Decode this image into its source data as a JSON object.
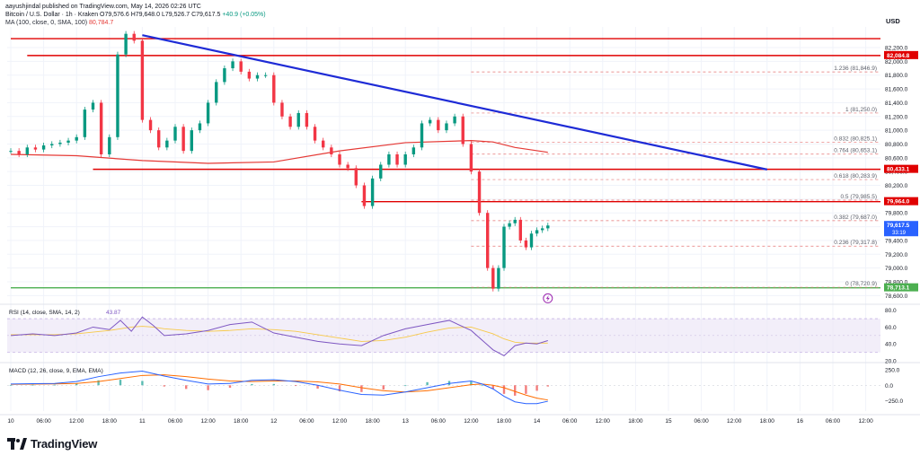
{
  "header": {
    "author": "aayushjindal published on TradingView.com, May 14, 2026 02:26 UTC",
    "symbol": "Bitcoin / U.S. Dollar · 1h · Kraken",
    "open": "O79,576.6",
    "high": "H79,648.0",
    "low": "L79,526.7",
    "close": "C79,617.5",
    "change": "+40.9 (+0.05%)",
    "ma_label": "MA (100, close, 0, SMA, 100)",
    "ma_value": "80,784.7"
  },
  "brand": {
    "name": "TradingView",
    "logo_icon": "tradingview-logo-icon"
  },
  "colors": {
    "up": "#089981",
    "down": "#f23645",
    "trendline": "#1e2bd6",
    "resistance": "#e00000",
    "support": "#4caf50",
    "ma": "#e53935",
    "fib": "#e57373",
    "rsi": "#7e57c2",
    "macd": "#2962ff",
    "signal": "#ff6d00",
    "current": "#2962ff"
  },
  "chart_data": [
    {
      "type": "candlestick",
      "currency": "USD",
      "ylim": [
        78500,
        82500
      ],
      "y_ticks": [
        78600,
        78800,
        79000,
        79200,
        79400,
        79600,
        79800,
        80000,
        80200,
        80400,
        80600,
        80800,
        81000,
        81200,
        81400,
        81600,
        81800,
        82000,
        82200
      ],
      "x_ticks": [
        "10",
        "06:00",
        "12:00",
        "18:00",
        "11",
        "06:00",
        "12:00",
        "18:00",
        "12",
        "06:00",
        "12:00",
        "18:00",
        "13",
        "06:00",
        "12:00",
        "18:00",
        "14",
        "06:00",
        "12:00",
        "18:00",
        "15",
        "06:00",
        "12:00",
        "18:00",
        "16",
        "06:00",
        "12:00"
      ],
      "x_tick_hours": [
        0,
        6,
        12,
        18,
        24,
        30,
        36,
        42,
        48,
        54,
        60,
        66,
        72,
        78,
        84,
        90,
        96,
        102,
        108,
        114,
        120,
        126,
        132,
        138,
        144,
        150,
        156
      ],
      "candle_hours": [
        0,
        1.5,
        3,
        4.5,
        6,
        7.5,
        9,
        10.5,
        12,
        13.5,
        15,
        16.5,
        18,
        19.5,
        21,
        22.5,
        24,
        25.5,
        27,
        28.5,
        30,
        31.5,
        33,
        34.5,
        36,
        37.5,
        39,
        40.5,
        42,
        43.5,
        45,
        46.5,
        48,
        49.5,
        51,
        52.5,
        54,
        55.5,
        57,
        58.5,
        60,
        61.5,
        63,
        64.5,
        66,
        67.5,
        69,
        70.5,
        72,
        73.5,
        75,
        76.5,
        78,
        79.5,
        81,
        82.5,
        84,
        85.5,
        87,
        88,
        89,
        90,
        91,
        92,
        93,
        94,
        95,
        96,
        97,
        98
      ],
      "open": [
        80700,
        80700,
        80650,
        80750,
        80720,
        80780,
        80800,
        80820,
        80850,
        80900,
        81300,
        81400,
        80650,
        80900,
        82100,
        82400,
        82300,
        81150,
        81000,
        80750,
        80850,
        81050,
        80700,
        81000,
        81100,
        81400,
        81700,
        81900,
        82000,
        81850,
        81750,
        81800,
        81800,
        81400,
        81200,
        81050,
        81250,
        81050,
        80850,
        80750,
        80650,
        80500,
        80450,
        80200,
        79900,
        80300,
        80500,
        80650,
        80500,
        80650,
        80750,
        81100,
        81150,
        81000,
        81100,
        81200,
        80800,
        80400,
        79800,
        79000,
        78700,
        79000,
        79600,
        79650,
        79700,
        79400,
        79300,
        79500,
        79550,
        79576
      ],
      "close": [
        80700,
        80650,
        80750,
        80720,
        80780,
        80800,
        80820,
        80850,
        80900,
        81300,
        81400,
        80650,
        80900,
        82100,
        82400,
        82300,
        81150,
        81000,
        80750,
        80850,
        81050,
        80700,
        81000,
        81100,
        81400,
        81700,
        81900,
        82000,
        81850,
        81750,
        81800,
        81800,
        81400,
        81200,
        81050,
        81250,
        81050,
        80850,
        80750,
        80650,
        80500,
        80450,
        80200,
        79900,
        80300,
        80500,
        80650,
        80500,
        80650,
        80750,
        81100,
        81150,
        81000,
        81100,
        81200,
        80800,
        80400,
        79800,
        79000,
        78700,
        79000,
        79600,
        79650,
        79700,
        79400,
        79300,
        79500,
        79550,
        79576,
        79617
      ],
      "ma_points": [
        [
          0,
          80650
        ],
        [
          12,
          80630
        ],
        [
          24,
          80560
        ],
        [
          36,
          80520
        ],
        [
          48,
          80540
        ],
        [
          60,
          80700
        ],
        [
          72,
          80820
        ],
        [
          84,
          80850
        ],
        [
          88,
          80830
        ],
        [
          92,
          80750
        ],
        [
          98,
          80680
        ]
      ],
      "trendline": [
        [
          24,
          82380
        ],
        [
          138,
          80430
        ]
      ],
      "fib_levels": [
        {
          "label": "1.236 (81,846.9)",
          "value": 81846.9
        },
        {
          "label": "1 (81,250.0)",
          "value": 81250.0
        },
        {
          "label": "0.832 (80,825.1)",
          "value": 80825.1
        },
        {
          "label": "0.764 (80,653.1)",
          "value": 80653.1
        },
        {
          "label": "0.618 (80,283.9)",
          "value": 80283.9
        },
        {
          "label": "0.5 (79,985.5)",
          "value": 79985.5
        },
        {
          "label": "0.382 (79,687.0)",
          "value": 79687.0
        },
        {
          "label": "0.236 (79,317.8)",
          "value": 79317.8
        },
        {
          "label": "0 (78,720.9)",
          "value": 78720.9
        }
      ],
      "horizontal_lines": [
        {
          "value": 82330,
          "from_hour": 0,
          "color": "#e00000"
        },
        {
          "value": 82084.8,
          "from_hour": 3,
          "color": "#e00000"
        },
        {
          "value": 80433.1,
          "from_hour": 15,
          "color": "#e00000"
        },
        {
          "value": 79964.0,
          "from_hour": 64,
          "color": "#e00000"
        },
        {
          "value": 78713.1,
          "from_hour": 0,
          "color": "#4caf50"
        }
      ],
      "price_labels": [
        {
          "text": "82,084.8",
          "value": 82084.8,
          "color": "#e00000"
        },
        {
          "text": "80,433.1",
          "value": 80433.1,
          "color": "#e00000"
        },
        {
          "text": "79,964.0",
          "value": 79964.0,
          "color": "#e00000"
        },
        {
          "text": "79,617.5",
          "value": 79617.5,
          "color": "#2962ff"
        },
        {
          "text": "78,713.1",
          "value": 78713.1,
          "color": "#4caf50"
        }
      ],
      "countdown": "33:19",
      "lightning_icon": "lightning-icon"
    },
    {
      "type": "line",
      "indicator": "RSI",
      "label": "RSI (14, close, SMA, 14, 2)",
      "value": "43.87",
      "ylim": [
        20,
        85
      ],
      "y_ticks": [
        20,
        40,
        60,
        80
      ],
      "band": [
        30,
        70
      ],
      "x": [
        0,
        4,
        8,
        12,
        15,
        18,
        20,
        22,
        24,
        26,
        28,
        32,
        36,
        40,
        44,
        48,
        52,
        56,
        60,
        64,
        68,
        72,
        76,
        80,
        84,
        88,
        90,
        92,
        94,
        96,
        98
      ],
      "rsi": [
        50,
        52,
        50,
        53,
        60,
        57,
        68,
        55,
        72,
        62,
        50,
        52,
        56,
        63,
        66,
        53,
        48,
        43,
        40,
        38,
        50,
        58,
        63,
        68,
        56,
        33,
        26,
        38,
        41,
        40,
        44
      ],
      "rsi_ma": [
        51,
        51,
        51,
        52,
        54,
        56,
        58,
        60,
        61,
        60,
        58,
        56,
        55,
        56,
        58,
        57,
        55,
        51,
        47,
        43,
        44,
        48,
        54,
        59,
        60,
        52,
        46,
        42,
        41,
        41,
        41
      ]
    },
    {
      "type": "bar+line",
      "indicator": "MACD",
      "label": "MACD (12, 26, close, 9, EMA, EMA)",
      "ylim": [
        -420,
        340
      ],
      "y_ticks": [
        -250,
        0,
        250
      ],
      "y_tick_labels": [
        "−250.0",
        "0.0",
        "250.0"
      ],
      "x": [
        0,
        4,
        8,
        12,
        16,
        20,
        24,
        28,
        32,
        36,
        40,
        44,
        48,
        52,
        56,
        60,
        64,
        68,
        72,
        76,
        80,
        84,
        86,
        88,
        90,
        92,
        94,
        96,
        98
      ],
      "macd": [
        20,
        25,
        30,
        60,
        140,
        200,
        230,
        150,
        80,
        20,
        30,
        80,
        90,
        60,
        0,
        -80,
        -150,
        -160,
        -110,
        -40,
        30,
        70,
        20,
        -60,
        -180,
        -270,
        -300,
        -300,
        -260
      ],
      "signal": [
        15,
        18,
        22,
        30,
        60,
        110,
        160,
        170,
        140,
        100,
        70,
        60,
        70,
        70,
        55,
        20,
        -40,
        -90,
        -110,
        -90,
        -40,
        10,
        20,
        0,
        -40,
        -100,
        -160,
        -210,
        -240
      ],
      "histogram": [
        5,
        7,
        8,
        30,
        80,
        90,
        70,
        -20,
        -60,
        -80,
        -40,
        20,
        20,
        -10,
        -55,
        -100,
        -110,
        -70,
        0,
        50,
        70,
        60,
        0,
        -60,
        -140,
        -170,
        -140,
        -90,
        -20
      ]
    }
  ]
}
